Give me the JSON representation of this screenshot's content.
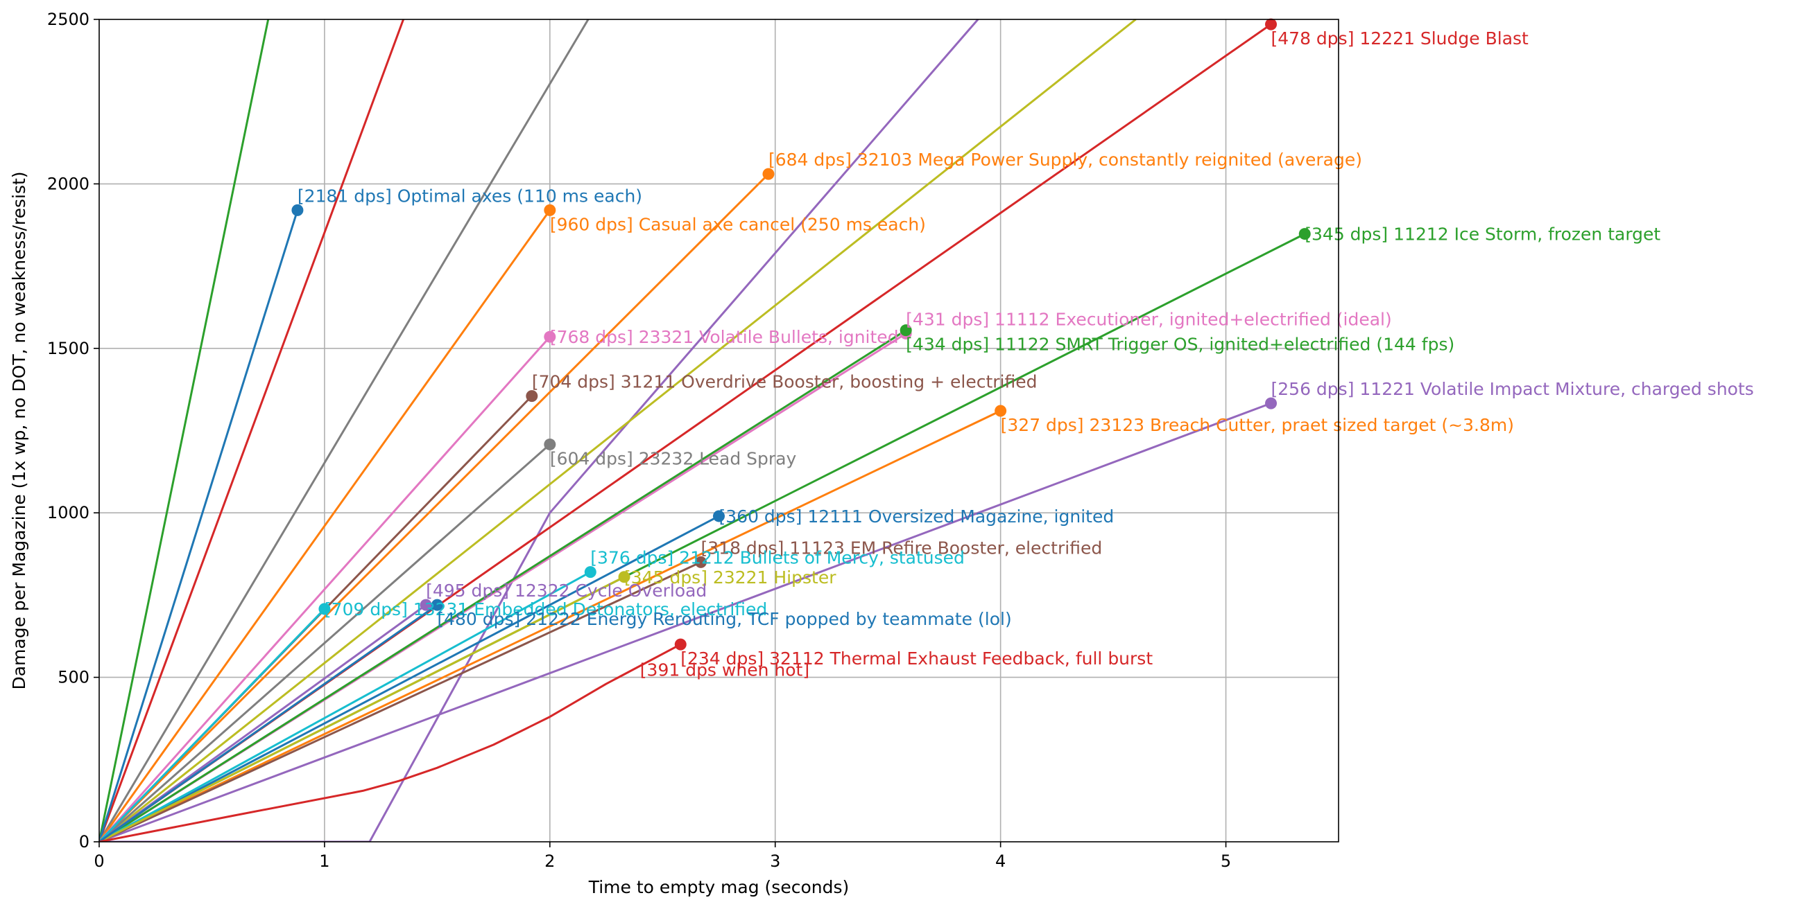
{
  "chart_data": {
    "type": "line",
    "xlabel": "Time to empty mag (seconds)",
    "ylabel": "Damage per Magazine (1x wp, no DOT, no weakness/resist)",
    "xlim": [
      0,
      5.5
    ],
    "ylim": [
      0,
      2500
    ],
    "xticks": [
      0,
      1,
      2,
      3,
      4,
      5
    ],
    "yticks": [
      0,
      500,
      1000,
      1500,
      2000,
      2500
    ],
    "grid": true,
    "series": [
      {
        "color": "#2ca02c",
        "x": [
          0,
          0.75
        ],
        "y": [
          0,
          2500
        ],
        "marker": false
      },
      {
        "color": "#d62728",
        "x": [
          0,
          1.35
        ],
        "y": [
          0,
          2500
        ],
        "marker": false
      },
      {
        "color": "#7f7f7f",
        "x": [
          0,
          2.17
        ],
        "y": [
          0,
          2500
        ],
        "marker": false
      },
      {
        "color": "#9467bd",
        "x": [
          0,
          1.2,
          2.0,
          3.9
        ],
        "y": [
          0,
          0,
          1000,
          2500
        ],
        "marker": false
      },
      {
        "color": "#bcbd22",
        "x": [
          0,
          4.6
        ],
        "y": [
          0,
          2500
        ],
        "marker": false
      },
      {
        "name": "[2181 dps] Optimal axes (110 ms each)",
        "color": "#1f77b4",
        "x": [
          0,
          0.88
        ],
        "y": [
          0,
          1920
        ],
        "label_pos": "above"
      },
      {
        "name": "[960 dps] Casual axe cancel (250 ms each)",
        "color": "#ff7f0e",
        "x": [
          0,
          2.0
        ],
        "y": [
          0,
          1920
        ],
        "label_pos": "below"
      },
      {
        "name": "[684 dps] 32103 Mega Power Supply, constantly reignited (average)",
        "color": "#ff7f0e",
        "x": [
          0,
          2.97
        ],
        "y": [
          0,
          2030
        ],
        "label_pos": "above"
      },
      {
        "name": "[478 dps] 12221 Sludge Blast",
        "color": "#d62728",
        "x": [
          0,
          5.2
        ],
        "y": [
          0,
          2485
        ],
        "label_pos": "below"
      },
      {
        "name": "[345 dps] 11212 Ice Storm, frozen target",
        "color": "#2ca02c",
        "x": [
          0,
          5.35
        ],
        "y": [
          0,
          1848
        ],
        "label_pos": "right"
      },
      {
        "name": "[768 dps] 23321 Volatile Bullets, ignited",
        "color": "#e377c2",
        "x": [
          0,
          2.0
        ],
        "y": [
          0,
          1535
        ],
        "label_pos": "right"
      },
      {
        "name": "[431 dps] 11112 Executioner, ignited+electrified (ideal)",
        "color": "#e377c2",
        "x": [
          0,
          3.58
        ],
        "y": [
          0,
          1545
        ],
        "label_pos": "above"
      },
      {
        "name": "[434 dps] 11122 SMRT Trigger OS, ignited+electrified (144 fps)",
        "color": "#2ca02c",
        "x": [
          0,
          3.58
        ],
        "y": [
          0,
          1555
        ],
        "label_pos": "below"
      },
      {
        "name": "[704 dps] 31211 Overdrive Booster, boosting + electrified",
        "color": "#8c564b",
        "x": [
          0,
          1.92
        ],
        "y": [
          0,
          1355
        ],
        "label_pos": "above"
      },
      {
        "name": "[256 dps] 11221 Volatile Impact Mixture, charged shots",
        "color": "#9467bd",
        "x": [
          0,
          5.2
        ],
        "y": [
          0,
          1333
        ],
        "label_pos": "above"
      },
      {
        "name": "[327 dps] 23123 Breach Cutter, praet sized target (~3.8m)",
        "color": "#ff7f0e",
        "x": [
          0,
          4.0
        ],
        "y": [
          0,
          1310
        ],
        "label_pos": "below"
      },
      {
        "name": "[604 dps] 23232 Lead Spray",
        "color": "#7f7f7f",
        "x": [
          0,
          2.0
        ],
        "y": [
          0,
          1208
        ],
        "label_pos": "below"
      },
      {
        "name": "[360 dps] 12111 Oversized Magazine, ignited",
        "color": "#1f77b4",
        "x": [
          0,
          2.75
        ],
        "y": [
          0,
          990
        ],
        "label_pos": "right"
      },
      {
        "name": "[318 dps] 11123 EM Refire Booster, electrified",
        "color": "#8c564b",
        "x": [
          0,
          2.67
        ],
        "y": [
          0,
          850
        ],
        "label_pos": "above"
      },
      {
        "name": "[376 dps] 21212 Bullets of Mercy, statused",
        "color": "#17becf",
        "x": [
          0,
          2.18
        ],
        "y": [
          0,
          820
        ],
        "label_pos": "above"
      },
      {
        "name": "[345 dps] 23221 Hipster",
        "color": "#bcbd22",
        "x": [
          0,
          2.33
        ],
        "y": [
          0,
          805
        ],
        "label_pos": "right"
      },
      {
        "name": "[495 dps] 12322 Cycle Overload",
        "color": "#9467bd",
        "x": [
          0,
          1.45
        ],
        "y": [
          0,
          720
        ],
        "label_pos": "above"
      },
      {
        "name": "[709 dps] 13231 Embedded Detonators, electrified",
        "color": "#17becf",
        "x": [
          0,
          1.0
        ],
        "y": [
          0,
          708
        ],
        "label_pos": "right"
      },
      {
        "name": "[480 dps] 21222 Energy Rerouting, TCF popped by teammate (lol)",
        "color": "#1f77b4",
        "x": [
          0,
          1.5
        ],
        "y": [
          0,
          720
        ],
        "label_pos": "below"
      },
      {
        "name": "[234 dps] 32112 Thermal Exhaust Feedback, full burst",
        "color": "#d62728",
        "x": [
          0,
          0.6,
          1.17,
          1.33,
          1.5,
          1.75,
          2.0,
          2.25,
          2.58
        ],
        "y": [
          0,
          80,
          155,
          185,
          225,
          295,
          380,
          480,
          600
        ],
        "label_pos": "below"
      }
    ],
    "annotations": [
      {
        "text": "[391 dps when hot]",
        "x": 2.4,
        "y": 500,
        "color": "#d62728"
      }
    ]
  }
}
